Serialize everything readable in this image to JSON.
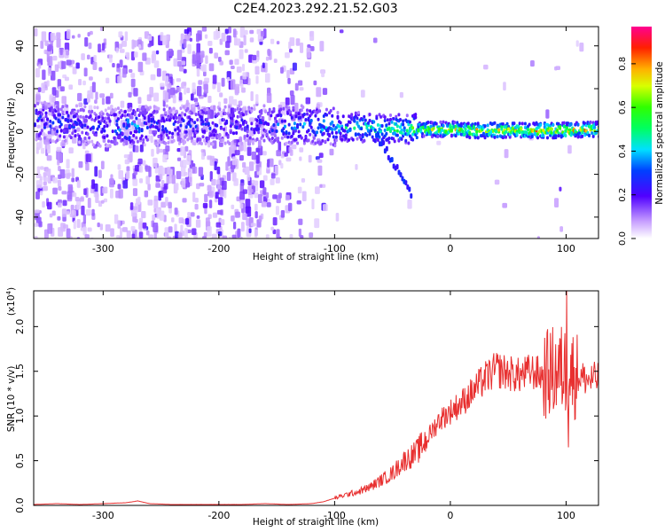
{
  "title": "C2E4.2023.292.21.52.G03",
  "chart_data": [
    {
      "type": "heatmap",
      "xlabel": "Height of straight line (km)",
      "ylabel": "Frequency (Hz)",
      "xlim": [
        -360,
        128
      ],
      "ylim": [
        -50,
        49
      ],
      "x_ticks": [
        -300,
        -200,
        -100,
        0,
        100
      ],
      "x_tick_labels": [
        "-300",
        "-200",
        "-100",
        "0",
        "100"
      ],
      "y_ticks": [
        -40,
        -20,
        0,
        20,
        40
      ],
      "y_tick_labels": [
        "-40",
        "-20",
        "0",
        "20",
        "40"
      ],
      "colorbar": {
        "label": "Normalized spectral amplitude",
        "ticks": [
          0.0,
          0.2,
          0.4,
          0.6,
          0.8
        ],
        "tick_labels": [
          "0.0",
          "0.2",
          "0.4",
          "0.6",
          "0.8"
        ],
        "range": [
          0,
          0.97
        ]
      },
      "ridge": {
        "x": [
          -360,
          -340,
          -320,
          -300,
          -280,
          -260,
          -240,
          -220,
          -200,
          -180,
          -160,
          -140,
          -120,
          -100,
          -80,
          -60,
          -40,
          -20,
          0,
          20,
          40,
          60,
          80,
          100,
          128
        ],
        "freq": [
          5,
          4,
          3,
          2,
          2,
          3,
          3,
          3,
          3,
          3,
          3,
          3,
          3,
          2,
          2,
          1,
          1,
          1,
          1,
          0.5,
          0.5,
          0.5,
          0.5,
          0.5,
          1
        ],
        "amplitude": [
          0.35,
          0.35,
          0.3,
          0.3,
          0.45,
          0.35,
          0.3,
          0.3,
          0.3,
          0.3,
          0.32,
          0.38,
          0.42,
          0.45,
          0.5,
          0.55,
          0.62,
          0.72,
          0.78,
          0.8,
          0.82,
          0.82,
          0.83,
          0.84,
          0.82
        ]
      },
      "grid": false
    },
    {
      "type": "line",
      "xlabel": "Height of straight line (km)",
      "ylabel": "SNR (10 * v/v)",
      "y_multiplier_label": "(x10",
      "y_multiplier_exp": "4",
      "xlim": [
        -360,
        128
      ],
      "ylim": [
        0,
        2.4
      ],
      "x_ticks": [
        -300,
        -200,
        -100,
        0,
        100
      ],
      "x_tick_labels": [
        "-300",
        "-200",
        "-100",
        "0",
        "100"
      ],
      "y_ticks": [
        0,
        0.5,
        1.0,
        1.5,
        2.0
      ],
      "y_tick_labels": [
        "0.0",
        "0.5",
        "1.0",
        "1.5",
        "2.0"
      ],
      "series": [
        {
          "color": "#e83030",
          "x": [
            -360,
            -340,
            -320,
            -300,
            -280,
            -270,
            -260,
            -240,
            -220,
            -200,
            -180,
            -160,
            -140,
            -120,
            -110,
            -100,
            -90,
            -80,
            -70,
            -60,
            -50,
            -40,
            -30,
            -20,
            -10,
            0,
            10,
            20,
            30,
            40,
            50,
            60,
            70,
            80,
            90,
            100,
            110,
            120,
            128
          ],
          "y": [
            0.01,
            0.02,
            0.01,
            0.02,
            0.03,
            0.05,
            0.02,
            0.01,
            0.01,
            0.01,
            0.01,
            0.02,
            0.01,
            0.02,
            0.04,
            0.08,
            0.12,
            0.15,
            0.2,
            0.28,
            0.36,
            0.5,
            0.58,
            0.75,
            0.95,
            1.05,
            1.15,
            1.28,
            1.42,
            1.52,
            1.48,
            1.45,
            1.5,
            1.45,
            1.5,
            1.52,
            1.45,
            1.4,
            1.42
          ]
        }
      ],
      "grid": false
    }
  ]
}
